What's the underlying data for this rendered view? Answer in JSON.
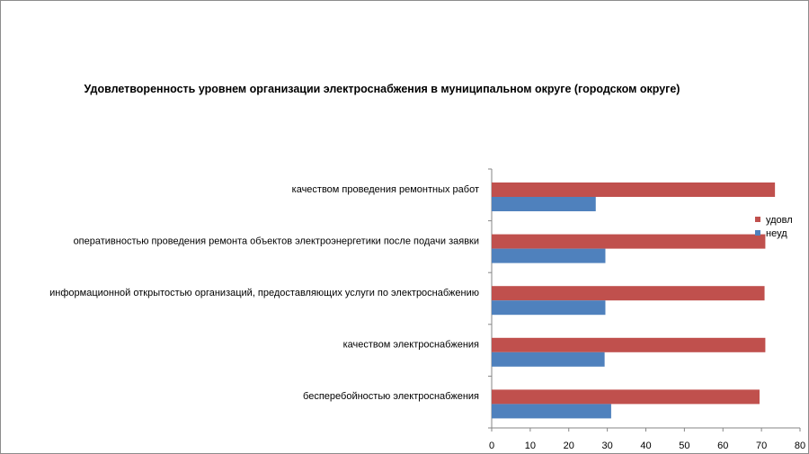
{
  "chart_data": {
    "type": "bar",
    "orientation": "horizontal",
    "title": "Удовлетворенность уровнем организации электроснабжения в муниципальном округе (городском округе)",
    "categories": [
      "бесперебойностью электроснабжения",
      "качеством электроснабжения",
      "информационной открытостью организаций, предоставляющих услуги по электроснабжению",
      "оперативностью проведения ремонта объектов электроэнергетики после подачи заявки",
      "качеством проведения ремонтных работ"
    ],
    "series": [
      {
        "name": "неуд",
        "color": "#4f81bd",
        "values": [
          31,
          29.3,
          29.5,
          29.5,
          27
        ]
      },
      {
        "name": "удовл",
        "color": "#c0504d",
        "values": [
          69.5,
          71,
          70.8,
          71,
          73.5
        ]
      }
    ],
    "xlim": [
      0,
      80
    ],
    "xticks": [
      "0",
      "10",
      "20",
      "30",
      "40",
      "50",
      "60",
      "70",
      "80"
    ],
    "grid": false,
    "legend_position": "right"
  }
}
